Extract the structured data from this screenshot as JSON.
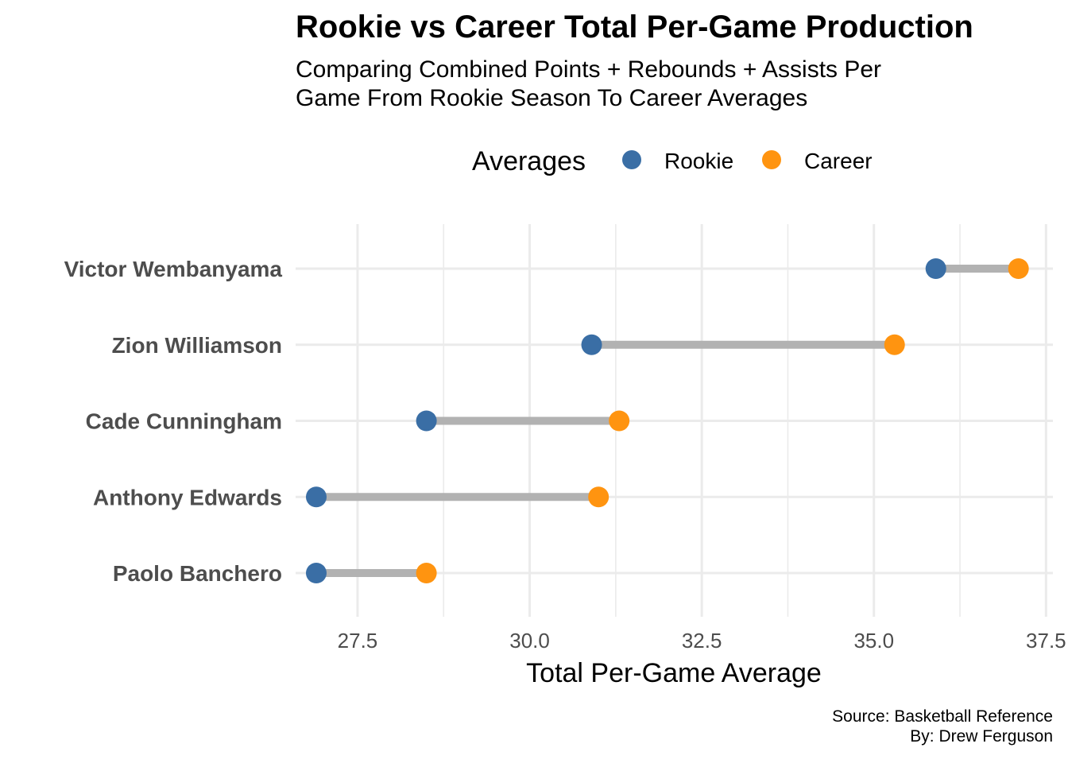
{
  "chart_data": {
    "type": "dumbbell",
    "title": "Rookie vs Career Total Per-Game Production",
    "subtitle": [
      "Comparing Combined Points + Rebounds + Assists Per",
      "Game From Rookie Season To Career Averages"
    ],
    "xlabel": "Total Per-Game Average",
    "ylabel": "",
    "xlim": [
      26.6,
      37.6
    ],
    "x_ticks": [
      "27.5",
      "30.0",
      "32.5",
      "35.0",
      "37.5"
    ],
    "legend": {
      "title": "Averages",
      "position": "top",
      "entries": [
        {
          "label": "Rookie",
          "color": "#3A6EA5"
        },
        {
          "label": "Career",
          "color": "#FF9410"
        }
      ]
    },
    "categories": [
      "Victor Wembanyama",
      "Zion Williamson",
      "Cade Cunningham",
      "Anthony Edwards",
      "Paolo Banchero"
    ],
    "series": [
      {
        "name": "Rookie",
        "values": [
          35.9,
          30.9,
          28.5,
          26.9,
          26.9
        ]
      },
      {
        "name": "Career",
        "values": [
          37.1,
          35.3,
          31.3,
          31.0,
          28.5
        ]
      }
    ],
    "colors": {
      "rookie": "#3A6EA5",
      "career": "#FF9410",
      "segment": "#B2B2B2",
      "grid": "#EBEBEB",
      "label": "#4D4D4D"
    },
    "grid": true,
    "caption": [
      "Source: Basketball Reference",
      "By: Drew Ferguson"
    ]
  }
}
